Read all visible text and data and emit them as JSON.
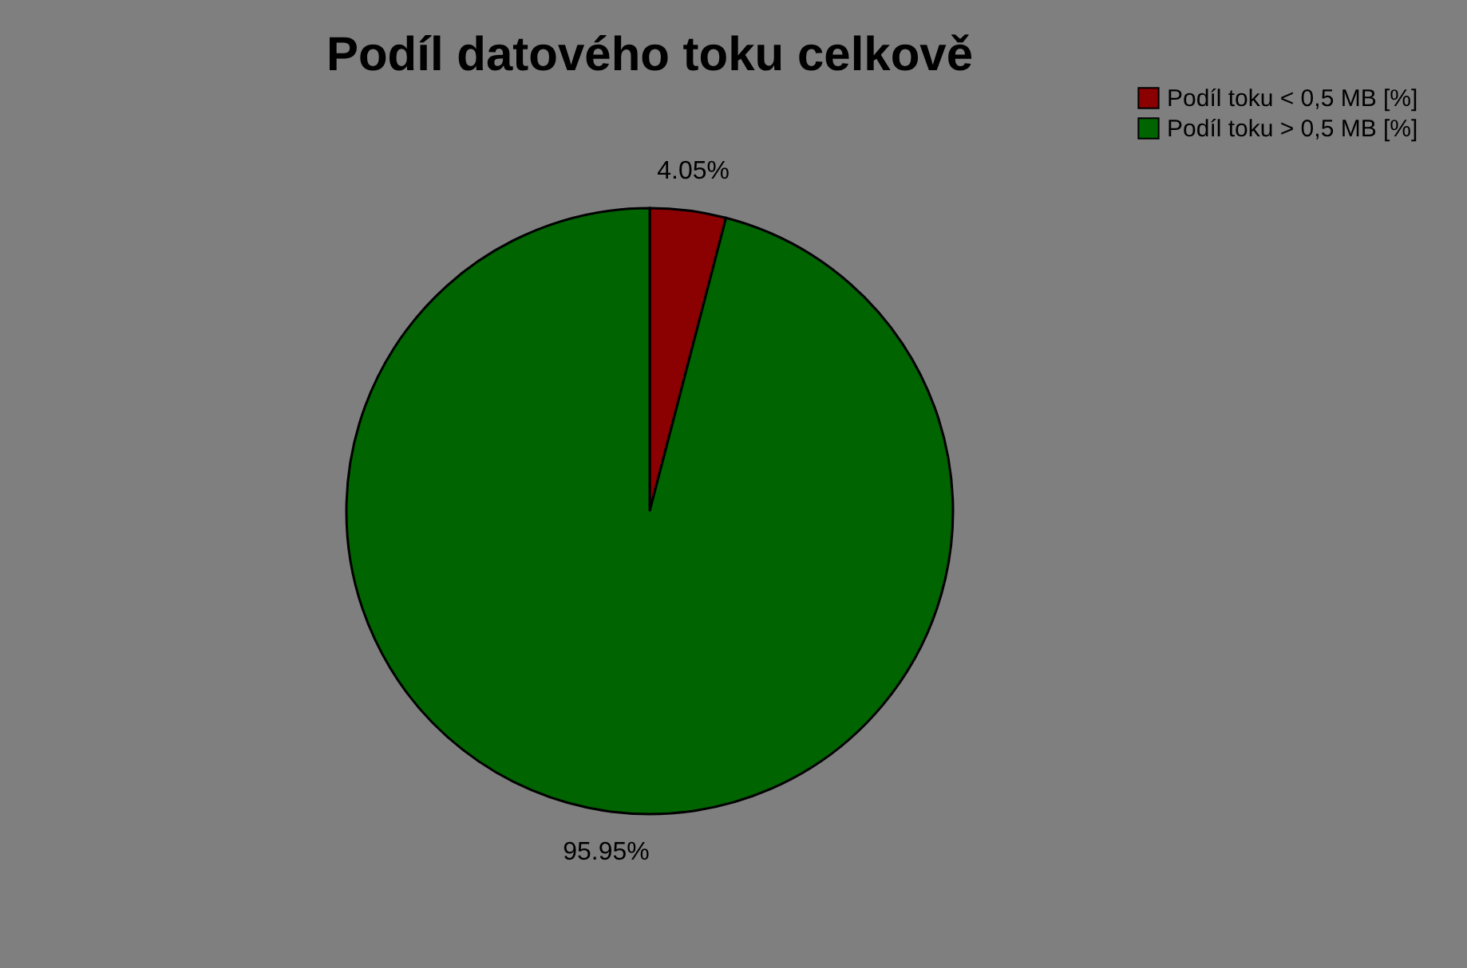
{
  "chart_data": {
    "type": "pie",
    "title": "Podíl datového toku celkově",
    "categories": [
      "Podíl toku < 0,5 MB [%]",
      "Podíl toku > 0,5 MB [%]"
    ],
    "values": [
      4.05,
      95.95
    ],
    "colors": [
      "#8b0000",
      "#006400"
    ],
    "value_labels": [
      "4.05%",
      "95.95%"
    ],
    "legend": "right"
  }
}
